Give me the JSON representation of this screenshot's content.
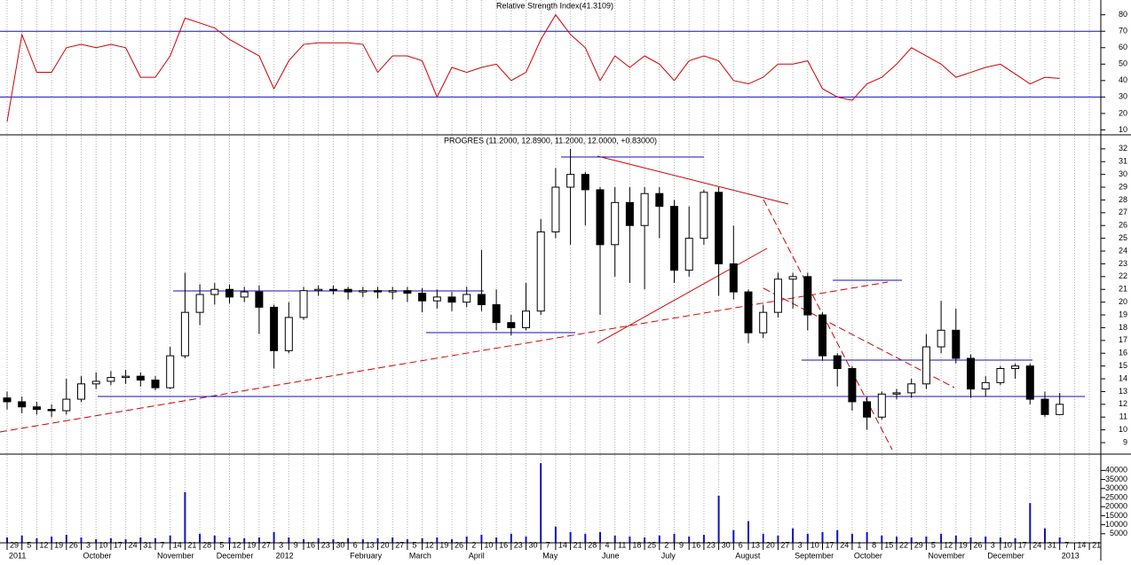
{
  "chart_data": [
    {
      "type": "line",
      "title": "Relative Strength Index(41.3109)",
      "color": "#d00000",
      "values": [
        15,
        68,
        45,
        45,
        60,
        62,
        60,
        62,
        60,
        42,
        42,
        55,
        78,
        75,
        72,
        65,
        60,
        55,
        35,
        52,
        62,
        63,
        63,
        63,
        62,
        45,
        55,
        55,
        52,
        30,
        48,
        45,
        48,
        50,
        40,
        45,
        65,
        80,
        68,
        60,
        40,
        55,
        48,
        55,
        50,
        40,
        52,
        55,
        52,
        40,
        38,
        42,
        50,
        50,
        52,
        35,
        30,
        28,
        38,
        42,
        50,
        60,
        55,
        50,
        42,
        45,
        48,
        50,
        44,
        38,
        42,
        41.31,
        null,
        null
      ],
      "levels": [
        70,
        30
      ],
      "level_color": "#1010c0",
      "ylim": [
        7,
        89
      ],
      "yticks": [
        10,
        20,
        30,
        40,
        50,
        60,
        70,
        80
      ]
    },
    {
      "type": "candlestick",
      "title": "PROGRES (11.2000, 12.8900, 11.2000, 12.0000, +0.83000)",
      "open": [
        12.5,
        12.2,
        11.8,
        11.6,
        11.5,
        12.4,
        13.6,
        13.8,
        14.1,
        14.2,
        13.9,
        13.3,
        15.8,
        19.2,
        20.6,
        21.0,
        20.4,
        20.8,
        19.6,
        16.2,
        18.8,
        20.9,
        21.0,
        21.0,
        20.8,
        20.9,
        20.8,
        20.9,
        20.7,
        20.1,
        20.4,
        20.0,
        20.6,
        19.8,
        18.4,
        18.0,
        19.3,
        25.5,
        29.0,
        30.0,
        28.8,
        24.5,
        27.8,
        26.0,
        28.5,
        27.5,
        22.5,
        25.0,
        28.6,
        23.0,
        20.8,
        17.6,
        19.2,
        21.8,
        22.0,
        19.0,
        15.8,
        14.8,
        12.2,
        11.0,
        12.8,
        12.9,
        13.6,
        16.5,
        17.8,
        15.6,
        13.2,
        13.7,
        14.8,
        15.0,
        12.4,
        11.2,
        null,
        null
      ],
      "high": [
        13.0,
        12.6,
        12.2,
        12.0,
        14.0,
        14.2,
        14.5,
        14.6,
        14.7,
        14.5,
        14.2,
        16.5,
        22.3,
        21.4,
        21.5,
        21.4,
        21.2,
        21.3,
        19.8,
        20.0,
        21.2,
        21.3,
        21.3,
        21.2,
        21.2,
        21.2,
        21.2,
        21.2,
        21.1,
        21.0,
        20.8,
        21.2,
        24.1,
        21.0,
        19.0,
        21.5,
        26.5,
        30.5,
        32.0,
        30.2,
        29.0,
        29.0,
        29.0,
        29.0,
        29.0,
        28.0,
        27.5,
        28.8,
        29.0,
        26.0,
        21.0,
        19.8,
        22.3,
        22.3,
        22.3,
        19.2,
        16.0,
        15.0,
        12.6,
        13.0,
        13.2,
        14.0,
        17.5,
        20.1,
        19.5,
        15.9,
        14.2,
        15.0,
        15.2,
        15.2,
        13.0,
        12.89,
        null,
        null
      ],
      "low": [
        11.6,
        11.3,
        11.2,
        11.0,
        11.2,
        12.2,
        13.2,
        13.5,
        13.6,
        13.4,
        13.1,
        13.2,
        15.6,
        18.2,
        19.8,
        19.9,
        20.0,
        17.5,
        14.8,
        16.0,
        18.6,
        20.5,
        20.6,
        20.2,
        20.4,
        20.3,
        20.2,
        20.0,
        19.2,
        19.5,
        19.3,
        19.6,
        19.3,
        17.8,
        17.4,
        17.8,
        19.0,
        25.0,
        24.5,
        26.0,
        19.0,
        22.0,
        21.5,
        21.0,
        25.0,
        21.5,
        22.0,
        24.5,
        20.5,
        20.2,
        16.8,
        17.2,
        18.8,
        19.5,
        17.8,
        15.4,
        13.4,
        11.5,
        10.0,
        10.8,
        12.4,
        12.5,
        13.2,
        16.0,
        15.2,
        12.5,
        12.6,
        13.5,
        14.0,
        12.0,
        11.0,
        11.2,
        null,
        null
      ],
      "close": [
        12.2,
        11.8,
        11.6,
        11.5,
        12.4,
        13.6,
        13.8,
        14.1,
        14.2,
        13.9,
        13.3,
        15.8,
        19.2,
        20.6,
        21.0,
        20.4,
        20.8,
        19.6,
        16.2,
        18.8,
        20.9,
        21.0,
        21.0,
        20.8,
        20.9,
        20.8,
        20.9,
        20.7,
        20.1,
        20.4,
        20.0,
        20.6,
        19.8,
        18.4,
        18.0,
        19.3,
        25.5,
        29.0,
        30.0,
        28.8,
        24.5,
        27.8,
        26.0,
        28.5,
        27.5,
        22.5,
        25.0,
        28.6,
        23.0,
        20.8,
        17.6,
        19.2,
        21.8,
        22.0,
        19.0,
        15.8,
        14.8,
        12.2,
        11.0,
        12.8,
        12.9,
        13.6,
        16.5,
        17.8,
        15.6,
        13.2,
        13.7,
        14.8,
        15.0,
        12.4,
        11.2,
        12.0,
        null,
        null
      ],
      "up_color": "#ffffff",
      "down_color": "#000000",
      "ylim": [
        8.1,
        33.1
      ],
      "yticks": [
        9,
        10,
        11,
        12,
        13,
        14,
        15,
        16,
        17,
        18,
        19,
        20,
        21,
        22,
        23,
        24,
        25,
        26,
        27,
        28,
        29,
        30,
        31,
        32
      ]
    },
    {
      "type": "bar",
      "color": "#1010c0",
      "categories": [
        "29",
        "5",
        "12",
        "19",
        "26",
        "3",
        "10",
        "17",
        "24",
        "31",
        "7",
        "14",
        "21",
        "28",
        "5",
        "12",
        "19",
        "27",
        "3",
        "9",
        "16",
        "23",
        "30",
        "6",
        "13",
        "20",
        "27",
        "5",
        "12",
        "19",
        "26",
        "2",
        "10",
        "16",
        "23",
        "30",
        "7",
        "14",
        "21",
        "28",
        "4",
        "11",
        "18",
        "25",
        "2",
        "9",
        "16",
        "23",
        "30",
        "6",
        "13",
        "20",
        "27",
        "3",
        "10",
        "17",
        "24",
        "1",
        "8",
        "15",
        "22",
        "29",
        "5",
        "12",
        "19",
        "26",
        "3",
        "10",
        "17",
        "24",
        "31",
        "7",
        "14",
        "21"
      ],
      "month_labels": [
        "2011",
        null,
        null,
        null,
        null,
        "October",
        null,
        null,
        null,
        null,
        "November",
        null,
        null,
        null,
        "December",
        null,
        null,
        null,
        "2012",
        null,
        null,
        null,
        null,
        "February",
        null,
        null,
        null,
        "March",
        null,
        null,
        null,
        "April",
        null,
        null,
        null,
        null,
        "May",
        null,
        null,
        null,
        "June",
        null,
        null,
        null,
        "July",
        null,
        null,
        null,
        null,
        "August",
        null,
        null,
        null,
        "September",
        null,
        null,
        null,
        "October",
        null,
        null,
        null,
        null,
        "November",
        null,
        null,
        null,
        "December",
        null,
        null,
        null,
        null,
        "2013",
        null,
        null
      ],
      "values": [
        3000,
        4000,
        2500,
        3500,
        4500,
        3000,
        2000,
        2500,
        2000,
        3000,
        2500,
        4000,
        28000,
        5000,
        4000,
        3000,
        2500,
        3000,
        6000,
        3000,
        2000,
        2500,
        2000,
        2500,
        2000,
        2500,
        3000,
        2000,
        2500,
        3000,
        2000,
        3500,
        4500,
        3000,
        5000,
        3500,
        44000,
        9000,
        6000,
        5000,
        6000,
        4000,
        3500,
        3000,
        4000,
        5000,
        3500,
        4500,
        26000,
        7000,
        12000,
        5000,
        4000,
        8000,
        5000,
        6000,
        7000,
        5000,
        6000,
        4000,
        3500,
        3000,
        3500,
        5000,
        4000,
        3000,
        3500,
        3000,
        2500,
        22000,
        8000,
        3000,
        null,
        null
      ],
      "ylim": [
        0,
        49000
      ],
      "yticks": [
        5000,
        10000,
        15000,
        20000,
        25000,
        30000,
        35000,
        40000
      ]
    }
  ]
}
